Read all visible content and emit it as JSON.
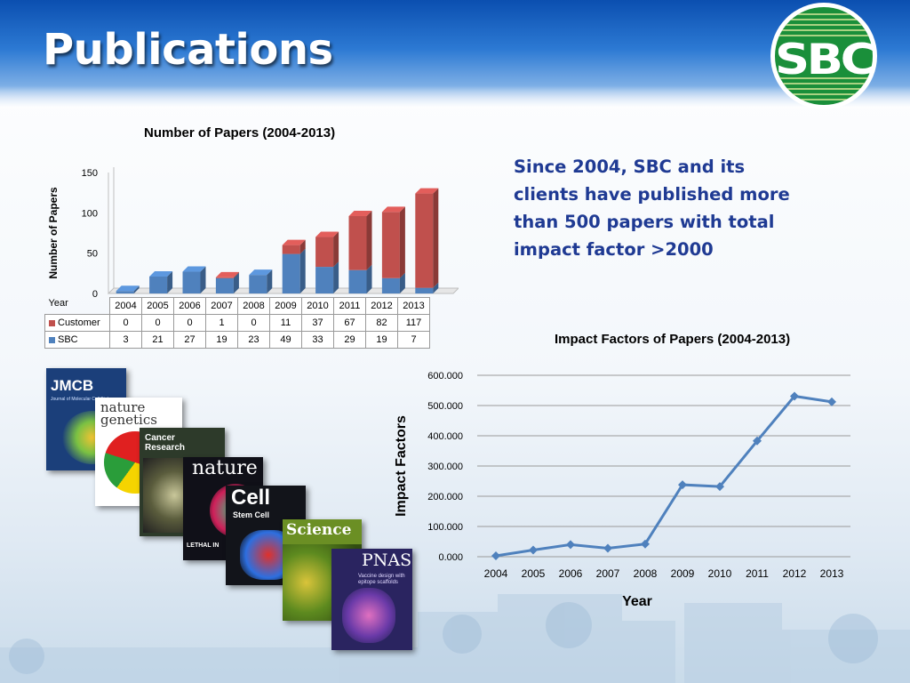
{
  "slide": {
    "title": "Publications",
    "logo_text": "SBC",
    "summary_text": "Since 2004, SBC and its clients have published more than 500 papers with total impact factor >2000"
  },
  "covers": [
    {
      "name": "JMCB",
      "label": "JMCB",
      "subtitle": "Journal of Molecular Cell Biology"
    },
    {
      "name": "nature-genetics",
      "label": "nature genetics"
    },
    {
      "name": "cancer-research",
      "label": "Cancer Research"
    },
    {
      "name": "nature",
      "label": "nature",
      "subtitle": "LETHAL IN"
    },
    {
      "name": "cell-stem-cell",
      "label": "Cell",
      "subtitle": "Stem Cell"
    },
    {
      "name": "science",
      "label": "Science"
    },
    {
      "name": "pnas",
      "label": "PNAS",
      "subtitle": "Vaccine design with epitope scaffolds"
    }
  ],
  "colors": {
    "customer": "#c0504d",
    "sbc": "#4f81bd",
    "line": "#4f81bd",
    "summary": "#1f3a93"
  },
  "chart_data": [
    {
      "type": "bar",
      "stacked": true,
      "title": "Number of Papers (2004-2013)",
      "ylabel": "Number of Papers",
      "xlabel": "Year",
      "ylim": [
        0,
        150
      ],
      "yticks": [
        "0",
        "50",
        "100",
        "150"
      ],
      "categories": [
        "2004",
        "2005",
        "2006",
        "2007",
        "2008",
        "2009",
        "2010",
        "2011",
        "2012",
        "2013"
      ],
      "series": [
        {
          "name": "Customer",
          "values": [
            0,
            0,
            0,
            1,
            0,
            11,
            37,
            67,
            82,
            117
          ]
        },
        {
          "name": "SBC",
          "values": [
            3,
            21,
            27,
            19,
            23,
            49,
            33,
            29,
            19,
            7
          ]
        }
      ],
      "legend": "table-below"
    },
    {
      "type": "line",
      "title": "Impact Factors of Papers (2004-2013)",
      "ylabel": "Impact Factors",
      "xlabel": "Year",
      "ylim": [
        0,
        600
      ],
      "yticks": [
        "0.000",
        "100.000",
        "200.000",
        "300.000",
        "400.000",
        "500.000",
        "600.000"
      ],
      "x": [
        "2004",
        "2005",
        "2006",
        "2007",
        "2008",
        "2009",
        "2010",
        "2011",
        "2012",
        "2013"
      ],
      "values": [
        3,
        22,
        40,
        28,
        42,
        238,
        232,
        383,
        531,
        512
      ],
      "grid": true
    }
  ]
}
